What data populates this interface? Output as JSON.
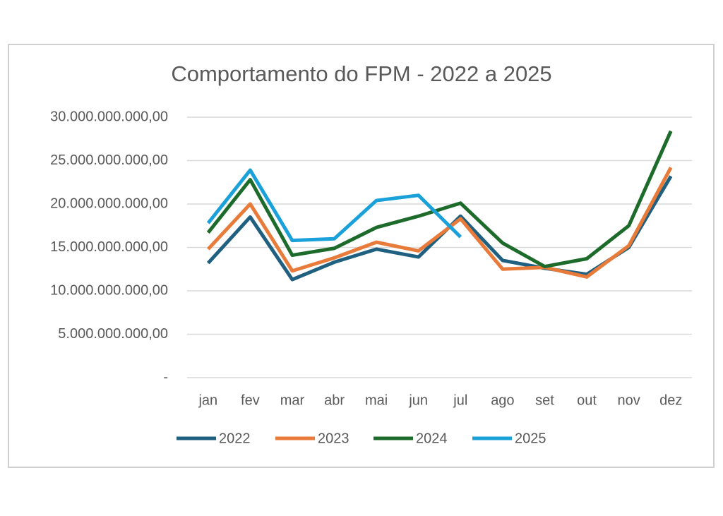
{
  "chart_data": {
    "type": "line",
    "title": "Comportamento do FPM - 2022 a 2025",
    "categories": [
      "jan",
      "fev",
      "mar",
      "abr",
      "mai",
      "jun",
      "jul",
      "ago",
      "set",
      "out",
      "nov",
      "dez"
    ],
    "series": [
      {
        "name": "2022",
        "color": "#1f5f7f",
        "values": [
          13200000000,
          18500000000,
          11300000000,
          13300000000,
          14800000000,
          13900000000,
          18600000000,
          13500000000,
          12600000000,
          11900000000,
          15000000000,
          23200000000
        ]
      },
      {
        "name": "2023",
        "color": "#e97b3a",
        "values": [
          14800000000,
          20000000000,
          12300000000,
          13800000000,
          15600000000,
          14600000000,
          18300000000,
          12500000000,
          12700000000,
          11600000000,
          15200000000,
          24200000000
        ]
      },
      {
        "name": "2024",
        "color": "#1d6b2a",
        "values": [
          16700000000,
          22800000000,
          14100000000,
          14900000000,
          17300000000,
          18600000000,
          20100000000,
          15500000000,
          12800000000,
          13700000000,
          17500000000,
          28400000000
        ]
      },
      {
        "name": "2025",
        "color": "#1ba1d9",
        "values": [
          17800000000,
          23900000000,
          15800000000,
          16000000000,
          20400000000,
          21000000000,
          16200000000,
          null,
          null,
          null,
          null,
          null
        ]
      }
    ],
    "ylim": [
      0,
      30000000000
    ],
    "yticks": [
      {
        "value": 0,
        "label": "-"
      },
      {
        "value": 5000000000,
        "label": "5.000.000.000,00"
      },
      {
        "value": 10000000000,
        "label": "10.000.000.000,00"
      },
      {
        "value": 15000000000,
        "label": "15.000.000.000,00"
      },
      {
        "value": 20000000000,
        "label": "20.000.000.000,00"
      },
      {
        "value": 25000000000,
        "label": "25.000.000.000,00"
      },
      {
        "value": 30000000000,
        "label": "30.000.000.000,00"
      }
    ],
    "grid": true,
    "legend": "bottom"
  }
}
